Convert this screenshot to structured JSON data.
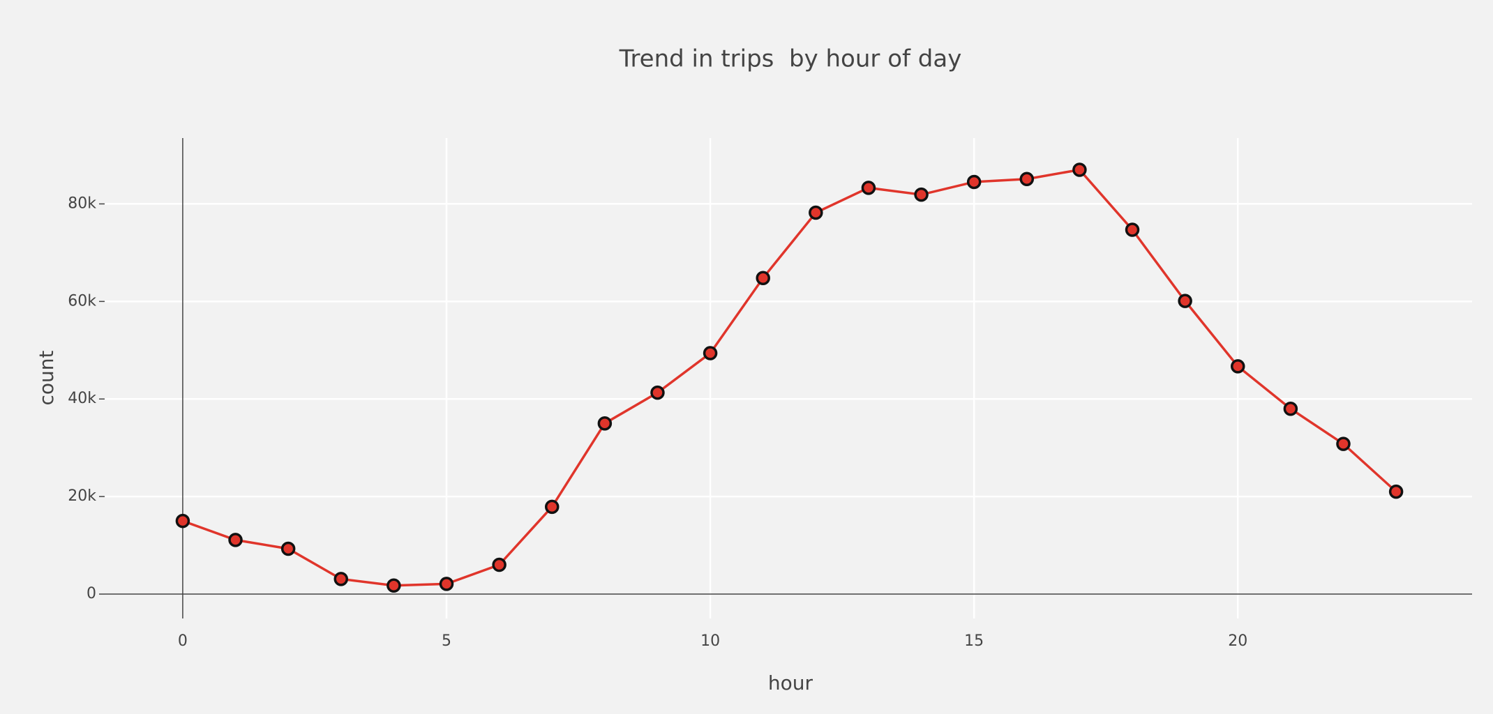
{
  "chart_data": {
    "type": "line",
    "title": "Trend in trips  by hour of day",
    "x_label": "hour",
    "y_label": "count",
    "x": [
      0,
      1,
      2,
      3,
      4,
      5,
      6,
      7,
      8,
      9,
      10,
      11,
      12,
      13,
      14,
      15,
      16,
      17,
      18,
      19,
      20,
      21,
      22,
      23
    ],
    "series": [
      {
        "name": "count",
        "color": "#e0352b",
        "values": [
          15000,
          11100,
          9300,
          3100,
          1750,
          2100,
          6000,
          17900,
          35000,
          41300,
          49400,
          64800,
          78200,
          83300,
          81900,
          84500,
          85100,
          87000,
          74700,
          60100,
          46700,
          38000,
          30800,
          21000
        ]
      }
    ],
    "xlim": [
      -1.48,
      24.44
    ],
    "xticks": [
      0,
      5,
      10,
      15,
      20
    ],
    "ylim": [
      -5000,
      93500
    ],
    "yticks": [
      0,
      {
        "value": 20000,
        "label": "20k"
      },
      {
        "value": 40000,
        "label": "40k"
      },
      {
        "value": 60000,
        "label": "60k"
      },
      {
        "value": 80000,
        "label": "80k"
      }
    ],
    "grid": true
  }
}
